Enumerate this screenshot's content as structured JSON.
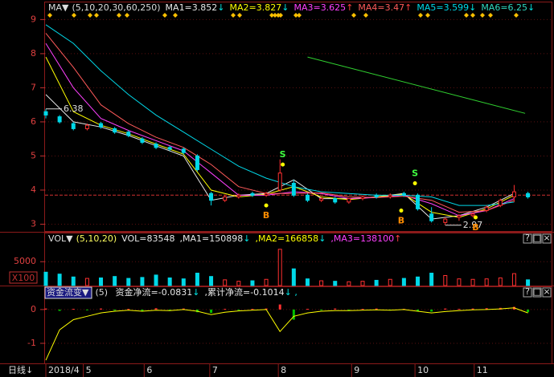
{
  "main": {
    "title": "MA▼",
    "params": "(5,10,20,30,60,250)",
    "xlim": [
      0,
      176
    ],
    "ylim": [
      2.8,
      9.15
    ],
    "yticks": [
      3,
      4,
      5,
      6,
      7,
      8,
      9
    ],
    "candles": {
      "x": [
        0,
        5,
        10,
        15,
        20,
        25,
        30,
        35,
        40,
        45,
        50,
        55,
        60,
        65,
        70,
        75,
        80,
        85,
        90,
        95,
        100,
        105,
        110,
        115,
        120,
        125,
        130,
        135,
        140,
        145,
        150,
        155,
        160,
        165,
        170,
        175
      ],
      "open": [
        6.3,
        6.15,
        5.95,
        5.8,
        5.95,
        5.8,
        5.7,
        5.5,
        5.35,
        5.25,
        5.2,
        5.0,
        3.9,
        3.7,
        3.8,
        3.9,
        3.85,
        4.0,
        4.2,
        3.85,
        3.7,
        3.75,
        3.65,
        3.75,
        3.85,
        3.8,
        3.9,
        3.85,
        3.3,
        3.05,
        3.2,
        3.25,
        3.4,
        3.55,
        3.8,
        3.9
      ],
      "close": [
        6.2,
        6.0,
        5.8,
        5.9,
        5.85,
        5.7,
        5.6,
        5.4,
        5.25,
        5.2,
        5.1,
        4.6,
        3.7,
        3.8,
        3.85,
        3.85,
        3.9,
        4.5,
        3.85,
        3.7,
        3.75,
        3.65,
        3.75,
        3.8,
        3.8,
        3.85,
        3.85,
        3.45,
        3.1,
        3.15,
        3.25,
        3.3,
        3.5,
        3.7,
        3.95,
        3.8
      ],
      "high": [
        6.38,
        6.2,
        6.0,
        5.95,
        6.0,
        5.85,
        5.75,
        5.55,
        5.4,
        5.3,
        5.25,
        5.05,
        3.95,
        3.85,
        3.9,
        3.95,
        3.95,
        4.9,
        4.3,
        3.9,
        3.8,
        3.8,
        3.75,
        3.85,
        3.9,
        3.9,
        3.95,
        3.9,
        3.5,
        3.2,
        3.3,
        3.35,
        3.55,
        3.75,
        4.15,
        3.95
      ],
      "low": [
        6.1,
        5.95,
        5.75,
        5.75,
        5.8,
        5.65,
        5.55,
        5.35,
        5.2,
        5.15,
        5.05,
        4.55,
        3.55,
        3.65,
        3.75,
        3.8,
        3.8,
        3.95,
        3.8,
        3.65,
        3.65,
        3.6,
        3.6,
        3.7,
        3.75,
        3.75,
        3.8,
        3.4,
        3.05,
        2.97,
        3.1,
        3.2,
        3.35,
        3.5,
        3.65,
        3.75
      ]
    },
    "ma": [
      {
        "name": "MA1=",
        "value": 3.852,
        "arrow": "↓",
        "color": "#e8e8e8",
        "arrow_color": "#00e0e0",
        "x": [
          0,
          10,
          20,
          30,
          40,
          50,
          60,
          70,
          80,
          90,
          100,
          110,
          120,
          130,
          140,
          150,
          160,
          170
        ],
        "values": [
          6.8,
          6.0,
          5.85,
          5.6,
          5.3,
          5.0,
          3.7,
          3.85,
          3.9,
          4.3,
          3.75,
          3.75,
          3.8,
          3.9,
          3.15,
          3.25,
          3.5,
          3.9
        ]
      },
      {
        "name": "MA2=",
        "value": 3.827,
        "arrow": "↓",
        "color": "#ffff00",
        "arrow_color": "#00e0e0",
        "x": [
          0,
          10,
          20,
          30,
          40,
          50,
          60,
          70,
          80,
          90,
          100,
          110,
          120,
          130,
          140,
          150,
          160,
          170
        ],
        "values": [
          7.9,
          6.3,
          5.9,
          5.65,
          5.35,
          5.05,
          4.0,
          3.8,
          3.88,
          4.1,
          3.8,
          3.72,
          3.8,
          3.88,
          3.35,
          3.2,
          3.45,
          3.85
        ]
      },
      {
        "name": "MA3=",
        "value": 3.625,
        "arrow": "↑",
        "color": "#ff40ff",
        "arrow_color": "#ff4040",
        "x": [
          0,
          10,
          20,
          30,
          40,
          50,
          60,
          70,
          80,
          90,
          100,
          110,
          120,
          130,
          140,
          150,
          160,
          170
        ],
        "values": [
          8.3,
          7.0,
          6.1,
          5.75,
          5.45,
          5.15,
          4.5,
          3.85,
          3.85,
          3.95,
          3.9,
          3.75,
          3.78,
          3.85,
          3.6,
          3.25,
          3.4,
          3.75
        ]
      },
      {
        "name": "MA4=",
        "value": 3.47,
        "arrow": "↑",
        "color": "#ff5a5a",
        "arrow_color": "#ff4040",
        "x": [
          0,
          10,
          20,
          30,
          40,
          50,
          60,
          70,
          80,
          90,
          100,
          110,
          120,
          130,
          140,
          150,
          160,
          170
        ],
        "values": [
          8.6,
          7.6,
          6.5,
          5.95,
          5.55,
          5.25,
          4.75,
          4.1,
          3.9,
          3.9,
          3.92,
          3.8,
          3.78,
          3.82,
          3.7,
          3.35,
          3.4,
          3.7
        ]
      },
      {
        "name": "MA5=",
        "value": 3.599,
        "arrow": "↓",
        "color": "#00d8e8",
        "arrow_color": "#00e0e0",
        "x": [
          0,
          10,
          20,
          30,
          40,
          50,
          60,
          70,
          80,
          90,
          100,
          110,
          120,
          130,
          140,
          150,
          160,
          170
        ],
        "values": [
          8.85,
          8.3,
          7.5,
          6.8,
          6.2,
          5.7,
          5.2,
          4.7,
          4.35,
          4.1,
          3.95,
          3.9,
          3.85,
          3.85,
          3.8,
          3.55,
          3.55,
          3.65
        ]
      },
      {
        "name": "MA6=",
        "value": 6.25,
        "arrow": "↓",
        "color": "#30d8c0",
        "line_color": "#30d030",
        "arrow_color": "#00e0e0",
        "x": [
          95,
          174
        ],
        "values": [
          7.9,
          6.25
        ]
      }
    ],
    "extremes": [
      {
        "x": 0,
        "value": 6.38
      },
      {
        "x": 145,
        "value": 2.97
      }
    ],
    "signals": [
      {
        "label": "B",
        "x": 80,
        "price": 3.55,
        "color": "#ff8c00"
      },
      {
        "label": "S",
        "x": 86,
        "price": 4.75,
        "color": "#40ff40"
      },
      {
        "label": "B",
        "x": 129,
        "price": 3.4,
        "color": "#ff8c00"
      },
      {
        "label": "S",
        "x": 134,
        "price": 4.2,
        "color": "#40ff40"
      },
      {
        "label": "B",
        "x": 156,
        "price": 3.2,
        "color": "#ff8c00"
      }
    ]
  },
  "volume": {
    "title": "VOL▼",
    "params": "(5,10,20)",
    "ylim": [
      0,
      8400
    ],
    "yticks": [
      5000
    ],
    "unit": "X100",
    "items": [
      {
        "name": "VOL=",
        "value": 83548,
        "arrow": "",
        "color": "#e8e8e8",
        "arrow_color": "#00e0e0"
      },
      {
        "name": ",MA1=",
        "value": 150898,
        "arrow": "↓",
        "color": "#e8e8e8",
        "arrow_color": "#00e0e0"
      },
      {
        "name": ",MA2=",
        "value": 166858,
        "arrow": "↓",
        "color": "#ffff00",
        "arrow_color": "#00e0e0"
      },
      {
        "name": ",MA3=",
        "value": 138100,
        "arrow": "↑",
        "color": "#ff40ff",
        "arrow_color": "#ff4040"
      }
    ],
    "values": [
      2800,
      2400,
      1800,
      1500,
      1600,
      1900,
      1500,
      1700,
      2200,
      1600,
      1400,
      2600,
      1900,
      1200,
      900,
      1000,
      1300,
      7600,
      3500,
      1400,
      1000,
      900,
      800,
      900,
      1100,
      1300,
      1500,
      1800,
      2600,
      2100,
      1400,
      1300,
      1400,
      1600,
      2500,
      1200
    ]
  },
  "money": {
    "title": "资金流变▼",
    "params": "(5)",
    "ylim": [
      -1.57,
      0.33
    ],
    "yticks": [
      0,
      -1
    ],
    "items": [
      {
        "name": " 资金净流=",
        "value": -0.0831,
        "arrow": "↓",
        "color": "#e8e8e8",
        "arrow_color": "#00e0e0"
      },
      {
        "name": ",累计净流=",
        "value": -0.1014,
        "arrow": "↓ ,",
        "color": "#e8e8e8",
        "arrow_color": "#00e0e0"
      }
    ],
    "bars": [
      0.03,
      -0.04,
      0.02,
      -0.02,
      0.03,
      -0.03,
      0.02,
      -0.05,
      0.04,
      -0.02,
      0.03,
      -0.08,
      -0.1,
      0.02,
      -0.01,
      0.02,
      0.03,
      0.15,
      -0.3,
      0.02,
      -0.02,
      0.03,
      -0.01,
      0.02,
      0.03,
      -0.02,
      0.02,
      -0.05,
      -0.06,
      0.03,
      0.02,
      0.03,
      0.04,
      0.05,
      0.08,
      -0.08
    ],
    "flow": [
      -1.5,
      -0.6,
      -0.3,
      -0.2,
      -0.1,
      -0.05,
      -0.02,
      -0.05,
      -0.02,
      -0.03,
      0,
      -0.05,
      -0.15,
      -0.08,
      -0.04,
      -0.02,
      0,
      -0.65,
      -0.2,
      -0.1,
      -0.05,
      -0.03,
      -0.03,
      -0.02,
      -0.01,
      -0.02,
      0,
      -0.05,
      -0.1,
      -0.06,
      -0.03,
      -0.01,
      0,
      0.02,
      0.05,
      -0.1
    ]
  },
  "footer": {
    "period": "日线↓",
    "xticks": [
      {
        "value": 0,
        "label": "2018/4"
      },
      {
        "value": 13.6,
        "label": "5"
      },
      {
        "value": 35.7,
        "label": "6"
      },
      {
        "value": 59.5,
        "label": "7"
      },
      {
        "value": 84.4,
        "label": "8"
      },
      {
        "value": 111,
        "label": "9"
      },
      {
        "value": 134,
        "label": "10"
      },
      {
        "value": 155.5,
        "label": "11"
      }
    ]
  }
}
